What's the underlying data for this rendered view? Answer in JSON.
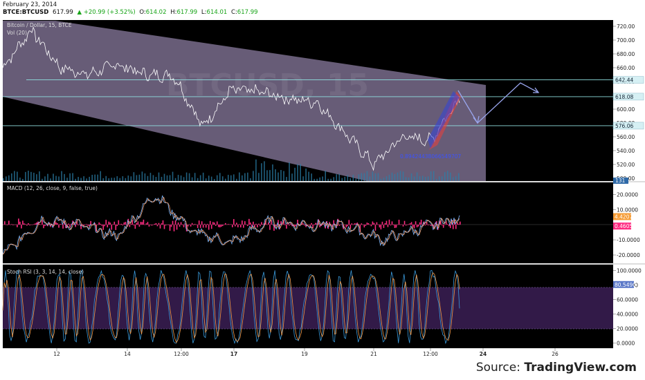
{
  "header": {
    "date": "February 23, 2014",
    "symbol": "BTCE:BTCUSD",
    "last": "617.99",
    "change": "▲ +20.99 (+3.52%)",
    "open_label": "O:",
    "open": "614.02",
    "high_label": "H:",
    "high": "617.99",
    "low_label": "L:",
    "low": "614.01",
    "close_label": "C:",
    "close": "617.99"
  },
  "price_panel": {
    "title": "Bitcoin / Dollar, 15, BTCE",
    "vol_label": "Vol (20)",
    "watermark": "BTCUSD, 15",
    "y_ticks": [
      "720.00",
      "700.00",
      "680.00",
      "660.00",
      "640.00",
      "620.00",
      "600.00",
      "580.00",
      "560.00",
      "540.00",
      "520.00",
      "500.00"
    ],
    "y_tick_values": [
      720,
      700,
      680,
      660,
      640,
      620,
      600,
      580,
      560,
      540,
      520,
      500
    ],
    "ylim": [
      496,
      728
    ],
    "level_labels": [
      "642.44",
      "618.08",
      "576.06"
    ],
    "level_values": [
      642.44,
      618.08,
      576.06
    ],
    "volume_label": "131",
    "fib_label": "0.89424438066549707"
  },
  "macd_panel": {
    "title": "MACD (12, 26, close, 9, false, true)",
    "y_ticks": [
      "20.0000",
      "10.0000",
      "-10.0000",
      "-20.0000"
    ],
    "y_tick_values": [
      20,
      10,
      -10,
      -20
    ],
    "ylim": [
      -25,
      27
    ],
    "value_labels": [
      "4.4207",
      "0.4605"
    ],
    "values": [
      4.4207,
      0.4605
    ]
  },
  "stoch_panel": {
    "title": "Stoch RSI (3, 3, 14, 14, close)",
    "y_ticks": [
      "100.0000",
      "80.0000",
      "60.0000",
      "40.0000",
      "20.0000",
      "0.0000"
    ],
    "y_tick_values": [
      100,
      80,
      60,
      40,
      20,
      0
    ],
    "ylim": [
      -5,
      105
    ],
    "value_label": "80.5490",
    "value": 80.549
  },
  "x_axis": {
    "ticks": [
      "12",
      "14",
      "12:00",
      "17",
      "19",
      "21",
      "12:00",
      "24",
      "26"
    ],
    "bold": [
      false,
      false,
      false,
      true,
      false,
      false,
      false,
      true,
      false
    ]
  },
  "source": {
    "prefix": "Source: ",
    "name": "TradingView.com"
  },
  "colors": {
    "channel": "#bca8d8",
    "price_line": "#ffffff",
    "level_line": "#8fe0e0",
    "macd": "#7fb9ff",
    "signal": "#f2a070",
    "histogram": "#ff2a80",
    "stoch_k": "#3a9bdc",
    "stoch_d": "#f39a4a",
    "stoch_band": "#3b1f55",
    "projection": "#9aa6ee"
  },
  "chart_data": [
    {
      "type": "line",
      "title": "Bitcoin / Dollar, 15, BTCE",
      "x": [
        "11",
        "12",
        "13",
        "14",
        "14 12:00",
        "15",
        "16",
        "17",
        "18",
        "19",
        "20",
        "20 12:00",
        "21",
        "21 12:00",
        "22",
        "22 12:00",
        "23"
      ],
      "series": [
        {
          "name": "Bitcoin / Dollar",
          "values": [
            660,
            715,
            660,
            650,
            665,
            650,
            648,
            575,
            628,
            625,
            615,
            610,
            565,
            520,
            560,
            555,
            618
          ]
        }
      ],
      "ylim": [
        496,
        728
      ]
    },
    {
      "type": "line",
      "title": "MACD (12, 26, close, 9, false, true)",
      "x": [
        "11",
        "12",
        "13",
        "14",
        "15",
        "16",
        "17",
        "18",
        "19",
        "20",
        "21",
        "22",
        "23"
      ],
      "series": [
        {
          "values": [
            -20,
            3,
            0,
            -8,
            20,
            -5,
            -12,
            2,
            0,
            -1,
            -10,
            -2,
            4.4
          ]
        },
        {
          "values": [
            -22,
            2,
            0,
            -6,
            15,
            -3,
            -10,
            1,
            0,
            0,
            -8,
            -2,
            0.46
          ]
        }
      ],
      "ylim": [
        -25,
        27
      ]
    },
    {
      "type": "line",
      "title": "Stoch RSI (3, 3, 14, 14, close)",
      "x": [
        "11",
        "12",
        "13",
        "14",
        "15",
        "16",
        "17",
        "18",
        "19",
        "20",
        "21",
        "22",
        "23"
      ],
      "series": [
        {
          "values": [
            80,
            10,
            95,
            5,
            90,
            15,
            95,
            0,
            85,
            10,
            95,
            5,
            80.5
          ]
        }
      ],
      "ylim": [
        -5,
        105
      ]
    }
  ]
}
